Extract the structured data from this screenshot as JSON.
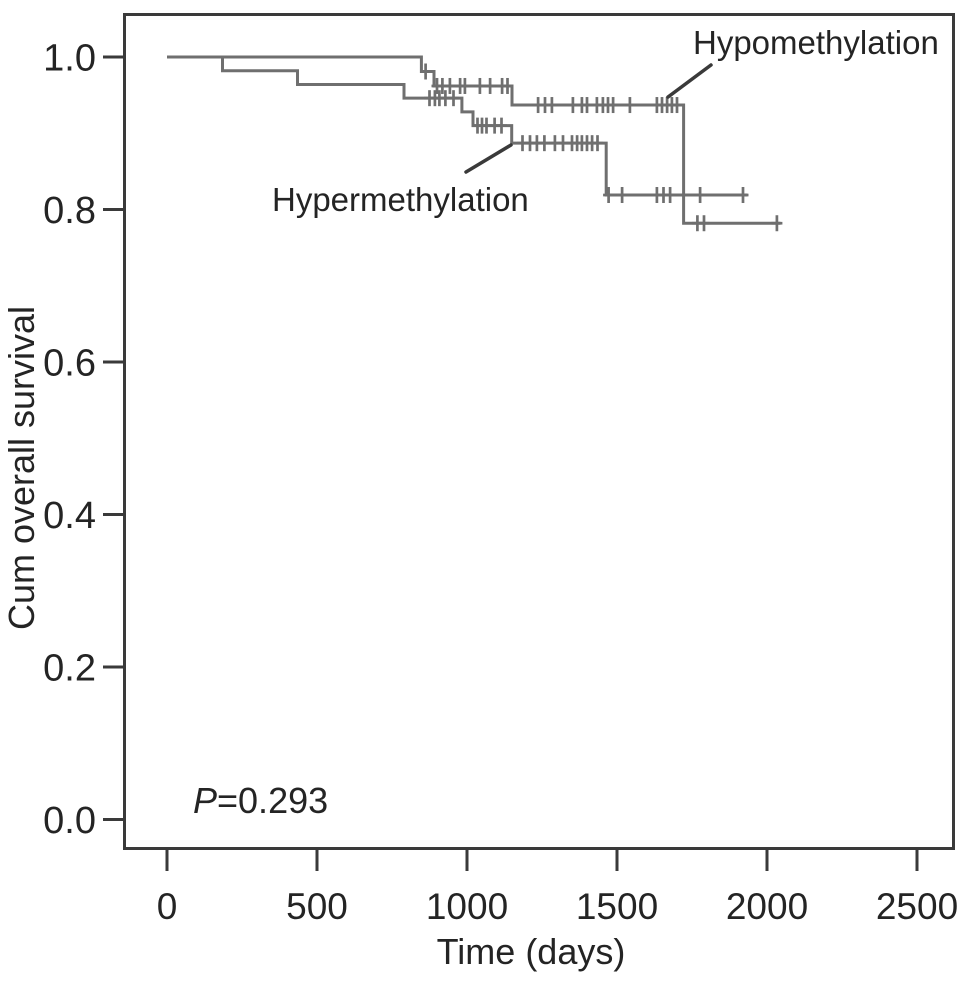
{
  "figure": {
    "background": "#ffffff",
    "curve_color": "#6f6f6f",
    "axis_color": "#3a3a3a",
    "text_color": "#242424"
  },
  "chart_data": {
    "type": "line",
    "subtype": "kaplan-meier-step-survival",
    "title": "",
    "xlabel": "Time (days)",
    "ylabel": "Cum overall survival",
    "grid": false,
    "legend_position": "inline-annotated",
    "x_ticks": [
      {
        "v": 0,
        "label": "0"
      },
      {
        "v": 500,
        "label": "500"
      },
      {
        "v": 1000,
        "label": "1000"
      },
      {
        "v": 1500,
        "label": "1500"
      },
      {
        "v": 2000,
        "label": "2000"
      },
      {
        "v": 2500,
        "label": "2500"
      }
    ],
    "y_ticks": [
      {
        "v": 1.0,
        "label": "1.0"
      },
      {
        "v": 0.8,
        "label": "0.8"
      },
      {
        "v": 0.6,
        "label": "0.6"
      },
      {
        "v": 0.4,
        "label": "0.4"
      },
      {
        "v": 0.2,
        "label": "0.2"
      },
      {
        "v": 0.0,
        "label": "0.0"
      }
    ],
    "xlim": [
      -140,
      2620
    ],
    "ylim": [
      -0.04,
      1.05
    ],
    "p_value_annotation": {
      "italic_part": "P",
      "rest_part": "=0.293"
    },
    "series": [
      {
        "name": "Hypermethylation",
        "steps": [
          [
            0,
            1.0
          ],
          [
            185,
            0.982
          ],
          [
            435,
            0.964
          ],
          [
            790,
            0.946
          ],
          [
            983,
            0.928
          ],
          [
            1020,
            0.91
          ],
          [
            1149,
            0.887
          ],
          [
            1464,
            0.819
          ]
        ],
        "end_day": 1935,
        "censors": [
          [
            875,
            0.946
          ],
          [
            893,
            0.946
          ],
          [
            908,
            0.946
          ],
          [
            928,
            0.946
          ],
          [
            955,
            0.946
          ],
          [
            1035,
            0.91
          ],
          [
            1050,
            0.91
          ],
          [
            1065,
            0.91
          ],
          [
            1092,
            0.91
          ],
          [
            1115,
            0.91
          ],
          [
            1185,
            0.887
          ],
          [
            1210,
            0.887
          ],
          [
            1233,
            0.887
          ],
          [
            1258,
            0.887
          ],
          [
            1293,
            0.887
          ],
          [
            1320,
            0.887
          ],
          [
            1350,
            0.887
          ],
          [
            1367,
            0.887
          ],
          [
            1383,
            0.887
          ],
          [
            1400,
            0.887
          ],
          [
            1417,
            0.887
          ],
          [
            1435,
            0.887
          ],
          [
            1472,
            0.819
          ],
          [
            1517,
            0.819
          ],
          [
            1633,
            0.819
          ],
          [
            1655,
            0.819
          ],
          [
            1677,
            0.819
          ],
          [
            1777,
            0.819
          ],
          [
            1920,
            0.819
          ]
        ],
        "label_pos": {
          "x": 272,
          "y": 211
        },
        "leader_line": [
          466,
          172,
          511,
          145
        ]
      },
      {
        "name": "Hypomethylation",
        "steps": [
          [
            0,
            1.0
          ],
          [
            848,
            0.981
          ],
          [
            890,
            0.962
          ],
          [
            1150,
            0.937
          ],
          [
            1722,
            0.782
          ]
        ],
        "end_day": 2045,
        "censors": [
          [
            862,
            0.981
          ],
          [
            900,
            0.962
          ],
          [
            918,
            0.962
          ],
          [
            943,
            0.962
          ],
          [
            977,
            0.962
          ],
          [
            993,
            0.962
          ],
          [
            1043,
            0.962
          ],
          [
            1077,
            0.962
          ],
          [
            1117,
            0.962
          ],
          [
            1135,
            0.962
          ],
          [
            1237,
            0.937
          ],
          [
            1260,
            0.937
          ],
          [
            1283,
            0.937
          ],
          [
            1353,
            0.937
          ],
          [
            1383,
            0.937
          ],
          [
            1400,
            0.937
          ],
          [
            1433,
            0.937
          ],
          [
            1453,
            0.937
          ],
          [
            1470,
            0.937
          ],
          [
            1487,
            0.937
          ],
          [
            1543,
            0.937
          ],
          [
            1633,
            0.937
          ],
          [
            1650,
            0.937
          ],
          [
            1667,
            0.937
          ],
          [
            1683,
            0.937
          ],
          [
            1700,
            0.937
          ],
          [
            1768,
            0.782
          ],
          [
            1790,
            0.782
          ],
          [
            2033,
            0.782
          ]
        ],
        "label_pos": {
          "x": 693,
          "y": 54
        },
        "leader_line": [
          711,
          65,
          668,
          97
        ]
      }
    ]
  }
}
